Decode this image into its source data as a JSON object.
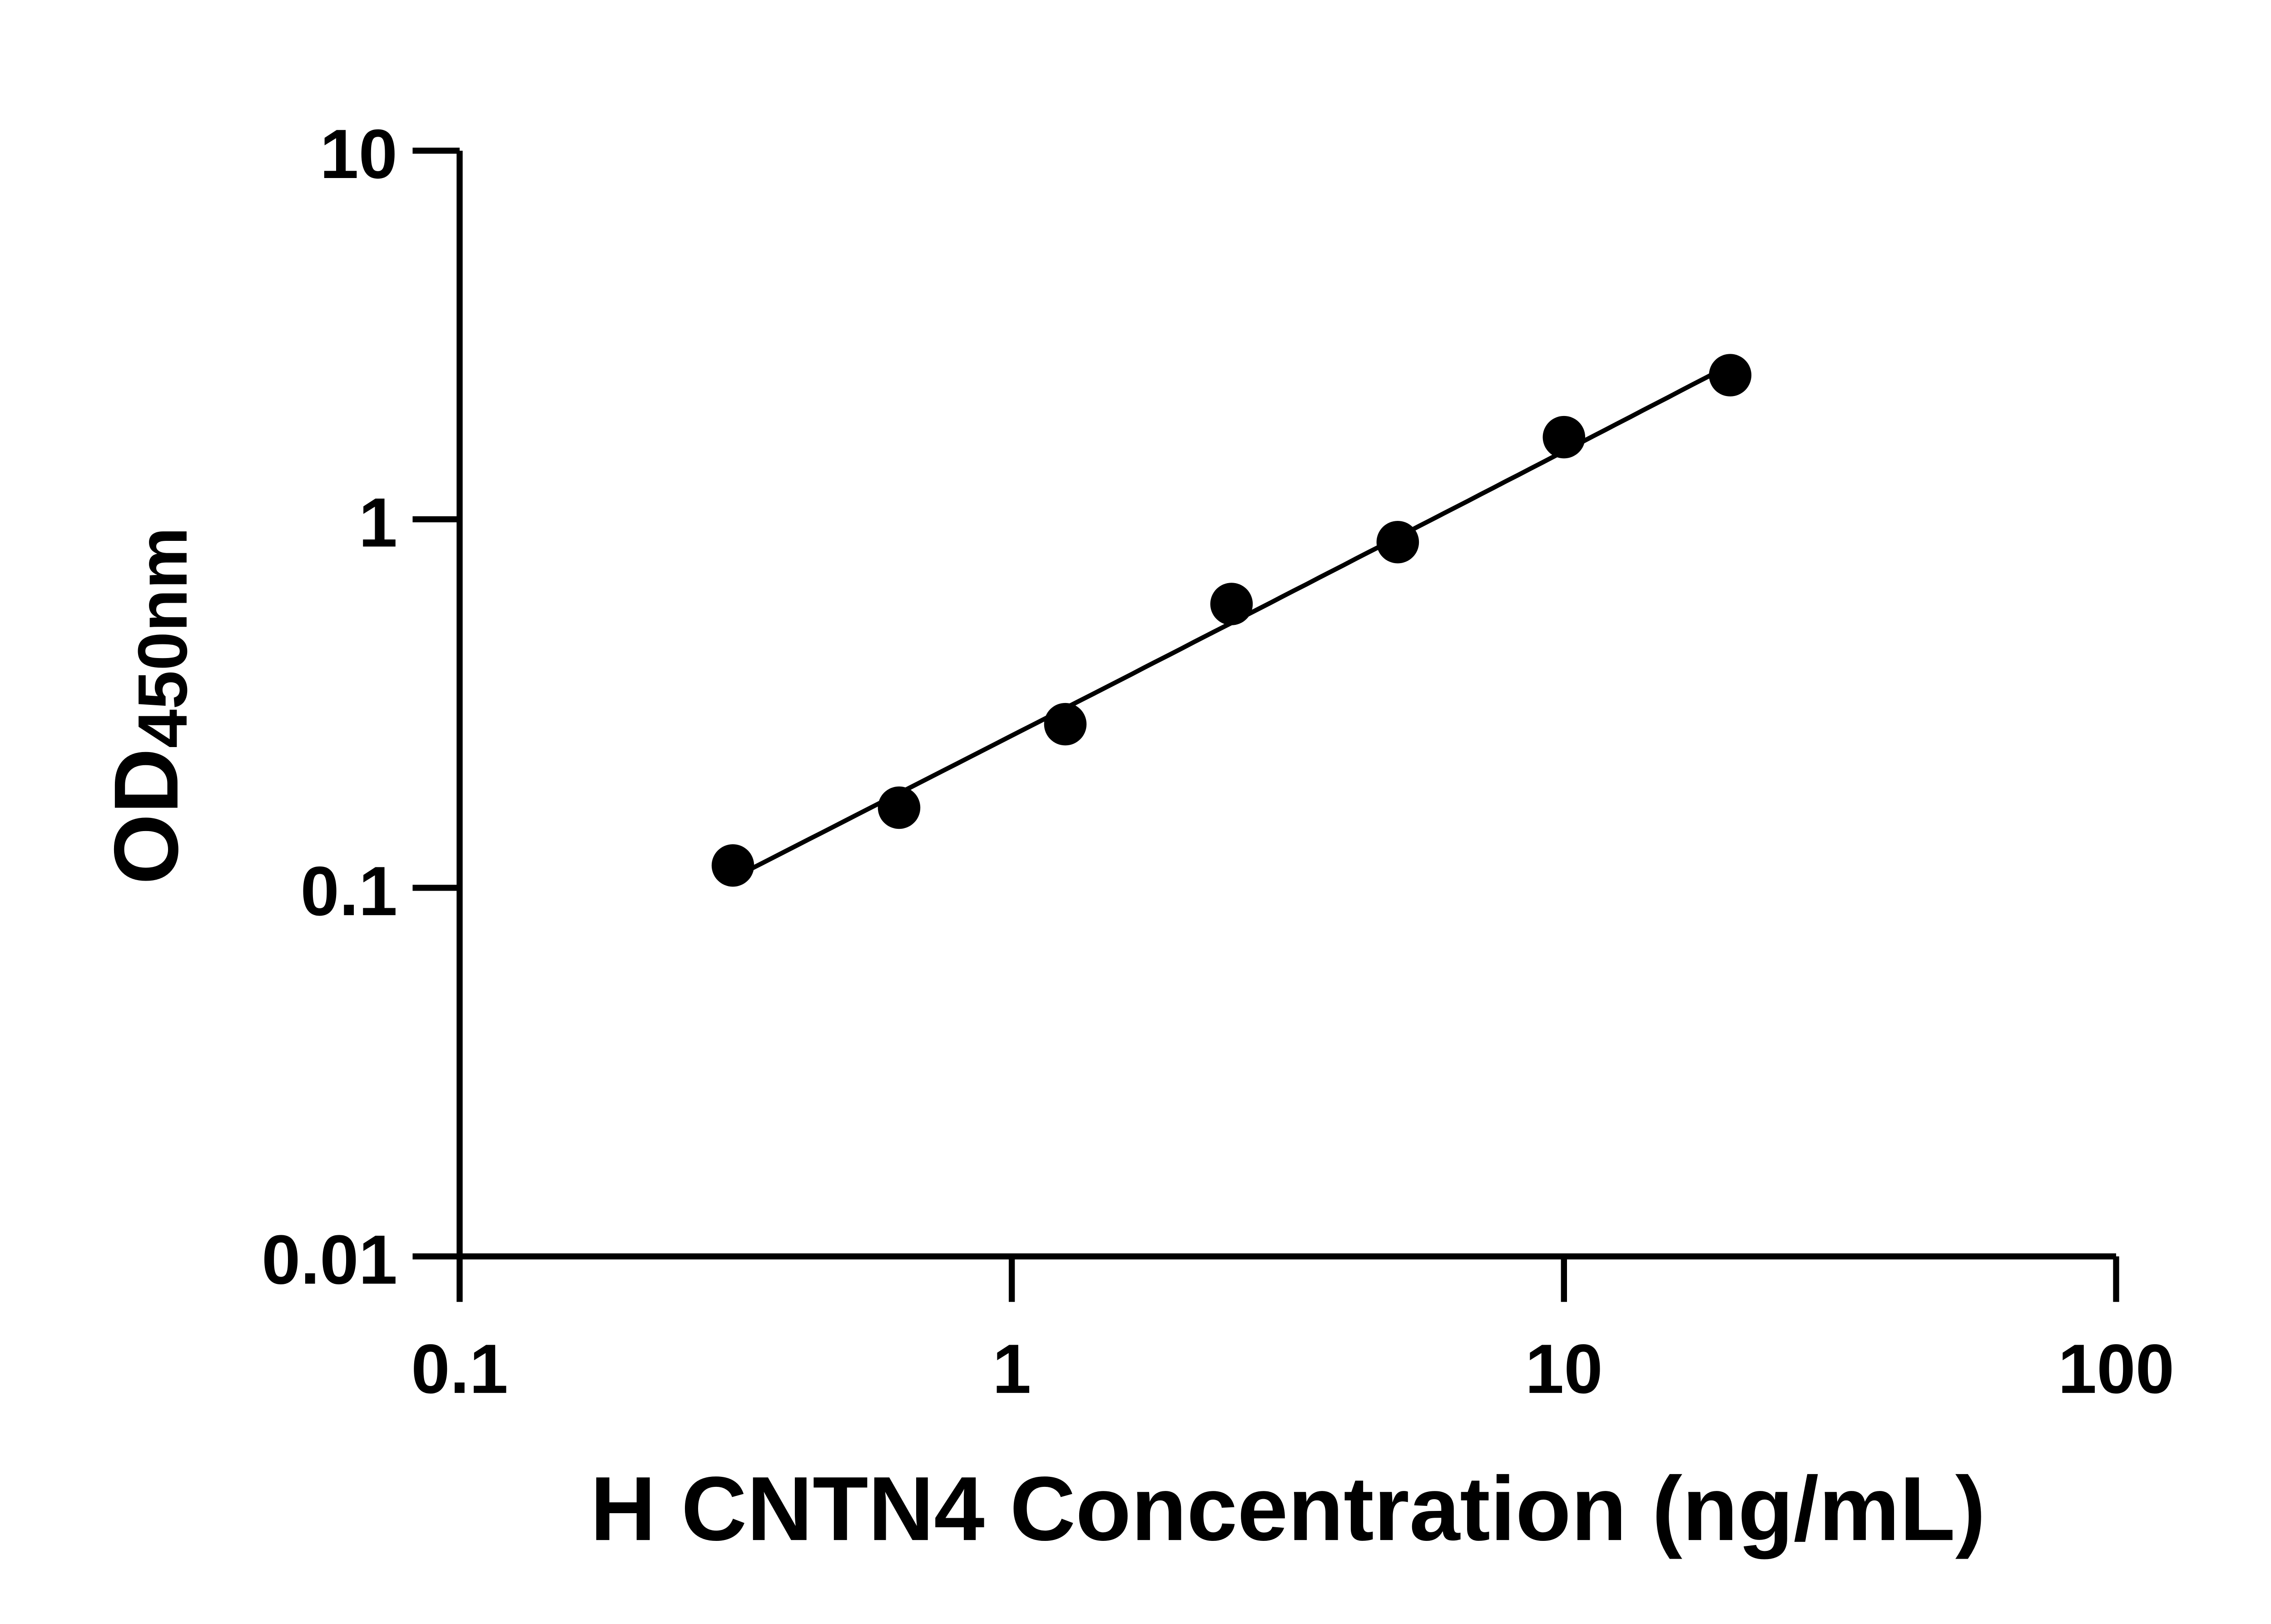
{
  "chart_data": {
    "type": "scatter",
    "title": "",
    "xlabel": "H CNTN4 Concentration (ng/mL)",
    "ylabel": "OD",
    "ylabel_sub": "450nm",
    "xscale": "log",
    "yscale": "log",
    "xlim": [
      0.1,
      100
    ],
    "ylim": [
      0.01,
      10
    ],
    "xticks": [
      "0.1",
      "1",
      "10",
      "100"
    ],
    "yticks": [
      "0.01",
      "0.1",
      "1",
      "10"
    ],
    "grid": false,
    "legend": "none",
    "fit_curve": true,
    "series": [
      {
        "x": [
          0.3125,
          0.625,
          1.25,
          2.5,
          5,
          10,
          20
        ],
        "y": [
          0.115,
          0.165,
          0.278,
          0.589,
          0.867,
          1.67,
          2.46
        ],
        "color": "#000000"
      }
    ]
  }
}
